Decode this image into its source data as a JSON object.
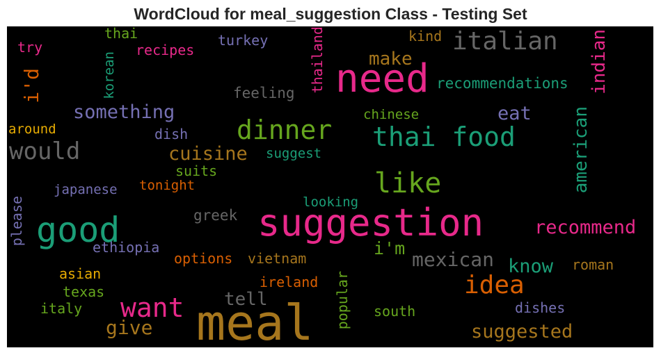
{
  "chart_data": {
    "type": "wordcloud",
    "title": "WordCloud for meal_suggestion Class - Testing Set",
    "background": "#000000",
    "palette": {
      "teal": "#1b9e77",
      "orange": "#d95f02",
      "purple": "#7570b3",
      "pink": "#e7298a",
      "green": "#66a61e",
      "gold": "#e6ab02",
      "brown": "#a6761d",
      "gray": "#666666"
    },
    "words": [
      {
        "text": "meal",
        "color": "#a6761d",
        "orientation": "horizontal"
      },
      {
        "text": "suggestion",
        "color": "#e7298a",
        "orientation": "horizontal"
      },
      {
        "text": "need",
        "color": "#e7298a",
        "orientation": "horizontal"
      },
      {
        "text": "good",
        "color": "#1b9e77",
        "orientation": "horizontal"
      },
      {
        "text": "italian",
        "color": "#666666",
        "orientation": "horizontal"
      },
      {
        "text": "thai food",
        "color": "#1b9e77",
        "orientation": "horizontal"
      },
      {
        "text": "dinner",
        "color": "#66a61e",
        "orientation": "horizontal"
      },
      {
        "text": "like",
        "color": "#66a61e",
        "orientation": "horizontal"
      },
      {
        "text": "want",
        "color": "#e7298a",
        "orientation": "horizontal"
      },
      {
        "text": "would",
        "color": "#666666",
        "orientation": "horizontal"
      },
      {
        "text": "idea",
        "color": "#d95f02",
        "orientation": "horizontal"
      },
      {
        "text": "something",
        "color": "#7570b3",
        "orientation": "horizontal"
      },
      {
        "text": "cuisine",
        "color": "#a6761d",
        "orientation": "horizontal"
      },
      {
        "text": "recommend",
        "color": "#e7298a",
        "orientation": "horizontal"
      },
      {
        "text": "mexican",
        "color": "#666666",
        "orientation": "horizontal"
      },
      {
        "text": "suggested",
        "color": "#a6761d",
        "orientation": "horizontal"
      },
      {
        "text": "make",
        "color": "#a6761d",
        "orientation": "horizontal"
      },
      {
        "text": "i'd",
        "color": "#d95f02",
        "orientation": "vertical"
      },
      {
        "text": "indian",
        "color": "#e7298a",
        "orientation": "vertical"
      },
      {
        "text": "american",
        "color": "#1b9e77",
        "orientation": "vertical"
      },
      {
        "text": "eat",
        "color": "#7570b3",
        "orientation": "horizontal"
      },
      {
        "text": "know",
        "color": "#1b9e77",
        "orientation": "horizontal"
      },
      {
        "text": "tell",
        "color": "#666666",
        "orientation": "horizontal"
      },
      {
        "text": "give",
        "color": "#a6761d",
        "orientation": "horizontal"
      },
      {
        "text": "i'm",
        "color": "#66a61e",
        "orientation": "horizontal"
      },
      {
        "text": "recommendations",
        "color": "#1b9e77",
        "orientation": "horizontal"
      },
      {
        "text": "thailand",
        "color": "#e7298a",
        "orientation": "vertical"
      },
      {
        "text": "korean",
        "color": "#1b9e77",
        "orientation": "vertical"
      },
      {
        "text": "feeling",
        "color": "#666666",
        "orientation": "horizontal"
      },
      {
        "text": "turkey",
        "color": "#7570b3",
        "orientation": "horizontal"
      },
      {
        "text": "recipes",
        "color": "#e7298a",
        "orientation": "horizontal"
      },
      {
        "text": "thai",
        "color": "#66a61e",
        "orientation": "horizontal"
      },
      {
        "text": "try",
        "color": "#e7298a",
        "orientation": "horizontal"
      },
      {
        "text": "kind",
        "color": "#a6761d",
        "orientation": "horizontal"
      },
      {
        "text": "chinese",
        "color": "#66a61e",
        "orientation": "horizontal"
      },
      {
        "text": "around",
        "color": "#e6ab02",
        "orientation": "horizontal"
      },
      {
        "text": "dish",
        "color": "#7570b3",
        "orientation": "horizontal"
      },
      {
        "text": "suggest",
        "color": "#1b9e77",
        "orientation": "horizontal"
      },
      {
        "text": "suits",
        "color": "#66a61e",
        "orientation": "horizontal"
      },
      {
        "text": "tonight",
        "color": "#d95f02",
        "orientation": "horizontal"
      },
      {
        "text": "japanese",
        "color": "#7570b3",
        "orientation": "horizontal"
      },
      {
        "text": "looking",
        "color": "#1b9e77",
        "orientation": "horizontal"
      },
      {
        "text": "greek",
        "color": "#666666",
        "orientation": "horizontal"
      },
      {
        "text": "please",
        "color": "#7570b3",
        "orientation": "vertical"
      },
      {
        "text": "ethiopia",
        "color": "#7570b3",
        "orientation": "horizontal"
      },
      {
        "text": "options",
        "color": "#d95f02",
        "orientation": "horizontal"
      },
      {
        "text": "vietnam",
        "color": "#a6761d",
        "orientation": "horizontal"
      },
      {
        "text": "asian",
        "color": "#e6ab02",
        "orientation": "horizontal"
      },
      {
        "text": "texas",
        "color": "#66a61e",
        "orientation": "horizontal"
      },
      {
        "text": "italy",
        "color": "#66a61e",
        "orientation": "horizontal"
      },
      {
        "text": "ireland",
        "color": "#d95f02",
        "orientation": "horizontal"
      },
      {
        "text": "popular",
        "color": "#66a61e",
        "orientation": "vertical"
      },
      {
        "text": "south",
        "color": "#66a61e",
        "orientation": "horizontal"
      },
      {
        "text": "roman",
        "color": "#a6761d",
        "orientation": "horizontal"
      },
      {
        "text": "dishes",
        "color": "#7570b3",
        "orientation": "horizontal"
      }
    ]
  }
}
